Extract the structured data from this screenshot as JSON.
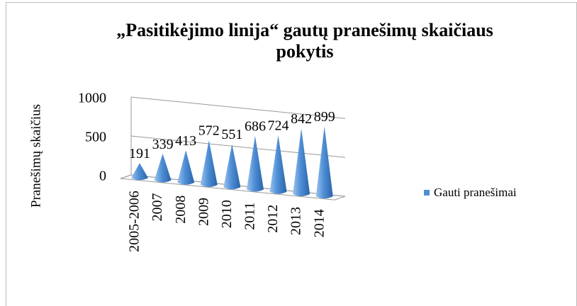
{
  "chart_data": {
    "type": "cone3d",
    "title": "„Pasitikėjimo linija“ gautų pranešimų skaičiaus pokytis",
    "y_axis_label": "Pranešimų skaičius",
    "categories": [
      "2005-2006",
      "2007",
      "2008",
      "2009",
      "2010",
      "2011",
      "2012",
      "2013",
      "2014"
    ],
    "series": [
      {
        "name": "Gauti pranešimai",
        "color": "#4f8fd6",
        "values": [
          191,
          339,
          413,
          572,
          551,
          686,
          724,
          842,
          899
        ]
      }
    ],
    "ylim": [
      0,
      1000
    ],
    "yticks": [
      0,
      500,
      1000
    ],
    "grid": true,
    "legend": "right"
  }
}
